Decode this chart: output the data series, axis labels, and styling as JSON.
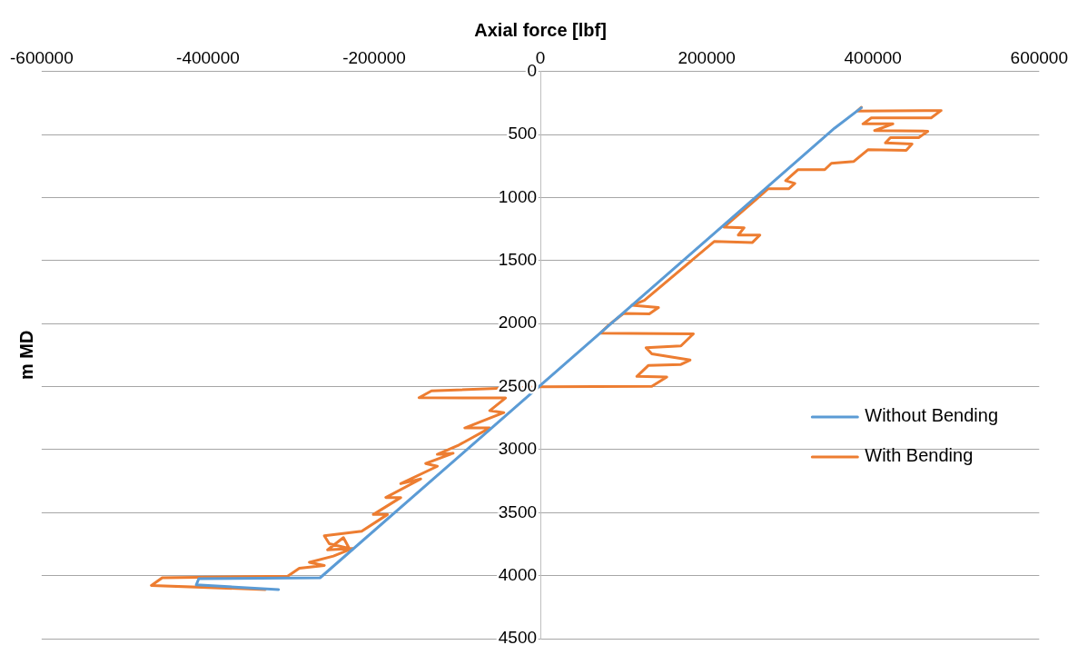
{
  "chart_data": {
    "type": "line",
    "xlabel": "Axial force [lbf]",
    "ylabel": "m MD",
    "xlim": [
      -600000,
      600000
    ],
    "xticks": [
      -600000,
      -400000,
      -200000,
      0,
      200000,
      400000,
      600000
    ],
    "ylim": [
      4500,
      0
    ],
    "yticks": [
      0,
      500,
      1000,
      1500,
      2000,
      2500,
      3000,
      3500,
      4000,
      4500
    ],
    "grid": "y",
    "legend": "right",
    "marker": "none",
    "line_style": "solid",
    "series": [
      {
        "name": "Without Bending",
        "color": "#5b9bd5",
        "x": [
          386000,
          354000,
          0,
          -265000,
          -411000,
          -414000,
          -315000
        ],
        "values": [
          287,
          448,
          2490,
          4017,
          4024,
          4073,
          4110
        ]
      },
      {
        "name": "With Bending",
        "color": "#ed7d31",
        "x": [
          386000,
          381000,
          482000,
          470000,
          398000,
          388000,
          424000,
          402000,
          466000,
          455000,
          421000,
          415000,
          447000,
          440000,
          394000,
          377000,
          350000,
          342000,
          310000,
          295000,
          306000,
          299000,
          274000,
          259000,
          221000,
          245000,
          238000,
          264000,
          255000,
          209000,
          125000,
          110000,
          142000,
          131000,
          100000,
          83000,
          72000,
          184000,
          169000,
          127000,
          134000,
          180000,
          169000,
          130000,
          116000,
          152000,
          134000,
          0,
          -131000,
          -146000,
          -42000,
          -61000,
          -44000,
          -91000,
          -61000,
          -98000,
          -124000,
          -105000,
          -138000,
          -124000,
          -168000,
          -144000,
          -186000,
          -168000,
          -201000,
          -184000,
          -215000,
          -260000,
          -254000,
          -230000,
          -237000,
          -256000,
          -226000,
          -249000,
          -278000,
          -260000,
          -290000,
          -304000,
          -455000,
          -468000,
          -331000
        ],
        "values": [
          283,
          314,
          309,
          367,
          367,
          415,
          415,
          468,
          473,
          524,
          524,
          566,
          574,
          625,
          620,
          713,
          728,
          778,
          778,
          866,
          887,
          929,
          929,
          1018,
          1234,
          1239,
          1297,
          1297,
          1356,
          1348,
          1816,
          1855,
          1873,
          1923,
          1919,
          2007,
          2076,
          2081,
          2177,
          2191,
          2240,
          2289,
          2324,
          2331,
          2419,
          2424,
          2497,
          2502,
          2534,
          2588,
          2590,
          2691,
          2706,
          2828,
          2828,
          2963,
          3037,
          3029,
          3110,
          3132,
          3270,
          3233,
          3380,
          3380,
          3515,
          3515,
          3647,
          3683,
          3747,
          3784,
          3698,
          3795,
          3784,
          3845,
          3894,
          3919,
          3941,
          4005,
          4017,
          4078,
          4110
        ]
      }
    ]
  }
}
